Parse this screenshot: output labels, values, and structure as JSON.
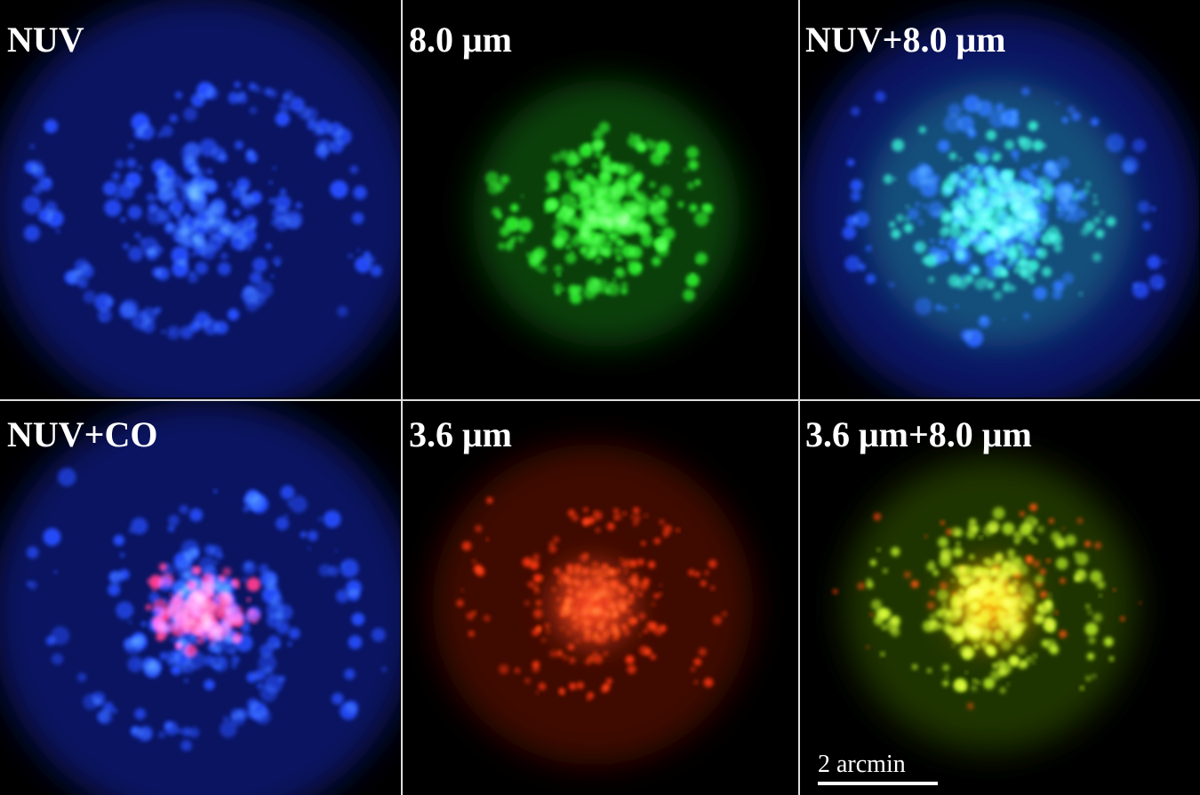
{
  "panels": [
    {
      "label": "NUV"
    },
    {
      "label": "8.0 μm"
    },
    {
      "label": "NUV+8.0 μm"
    },
    {
      "label": "NUV+CO"
    },
    {
      "label": "3.6 μm"
    },
    {
      "label": "3.6 μm+8.0 μm"
    }
  ],
  "scale_bar": {
    "label": "2 arcmin"
  }
}
